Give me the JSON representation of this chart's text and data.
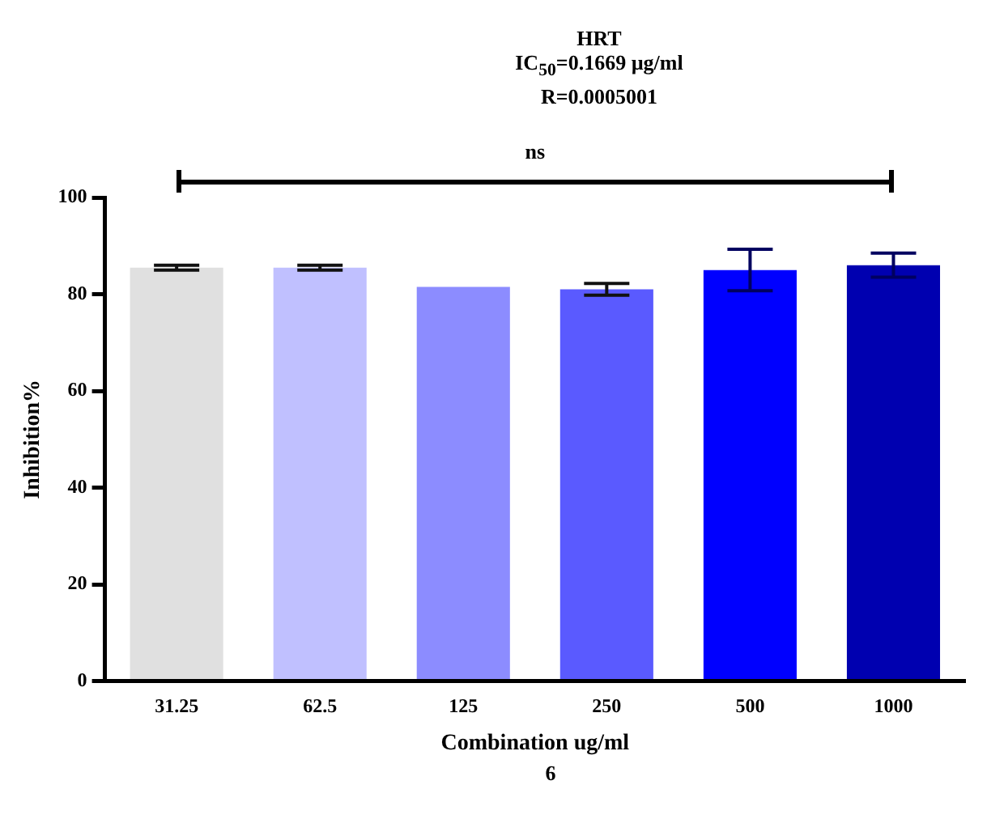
{
  "chart_data": {
    "type": "bar",
    "title": "HRT",
    "subtitle": "IC$_{50}$=0.1669 µg/ml",
    "annotations": [
      "R=0.0005001",
      "ns",
      "6"
    ],
    "xlabel": "Combination ug/ml",
    "ylabel": "Inhibition%",
    "categories": [
      "31.25",
      "62.5",
      "125",
      "250",
      "500",
      "1000"
    ],
    "values": [
      85.5,
      85.5,
      81.5,
      81,
      85,
      86
    ],
    "errors": [
      0.5,
      0.5,
      null,
      1.2,
      4.3,
      2.5
    ],
    "colors": [
      "#e0e0e0",
      "#c0c0ff",
      "#8c8cff",
      "#5a5aff",
      "#0000ff",
      "#0000b0"
    ],
    "ylim": [
      0,
      100
    ],
    "yticks": [
      0,
      20,
      40,
      60,
      80,
      100
    ],
    "grid": false,
    "legend": false
  }
}
